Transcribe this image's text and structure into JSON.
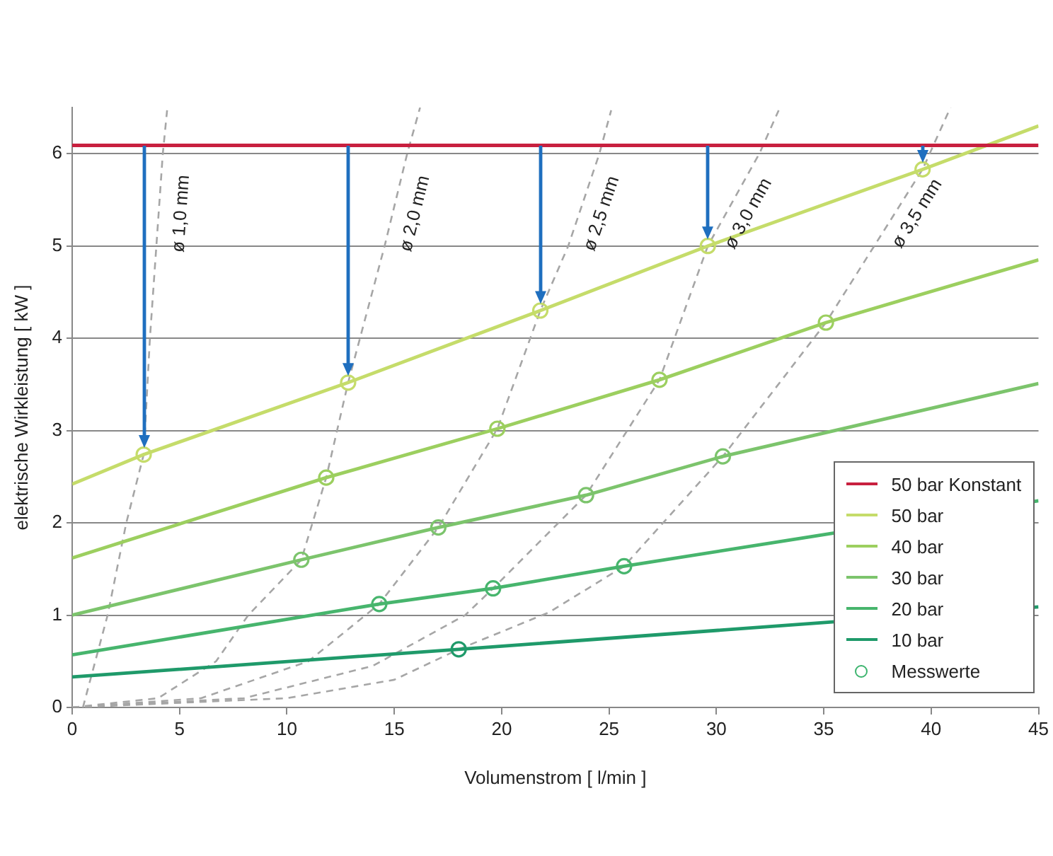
{
  "chart_data": {
    "type": "line",
    "xlabel": "Volumenstrom [ l/min ]",
    "ylabel": "elektrische Wirkleistung [ kW ]",
    "xlim": [
      0,
      45
    ],
    "xticks": [
      0,
      5,
      10,
      15,
      20,
      25,
      30,
      35,
      40,
      45
    ],
    "ylim": [
      0,
      6.5
    ],
    "yticks": [
      0,
      1,
      2,
      3,
      4,
      5,
      6
    ],
    "grid": "y",
    "legend": "bottom right",
    "series": [
      {
        "name": "50 bar Konstant",
        "color": "#c8203f",
        "x": [
          0,
          45
        ],
        "values": [
          6.09,
          6.09
        ]
      },
      {
        "name": "50 bar",
        "color": "#c5dc6a",
        "x": [
          0,
          3.33,
          12.85,
          21.8,
          29.6,
          39.6,
          45
        ],
        "values": [
          2.42,
          2.74,
          3.52,
          4.3,
          5.0,
          5.83,
          6.3
        ]
      },
      {
        "name": "40 bar",
        "color": "#9ccf5f",
        "x": [
          0,
          11.83,
          19.8,
          27.35,
          35.1,
          45
        ],
        "values": [
          1.62,
          2.49,
          3.02,
          3.55,
          4.17,
          4.85
        ]
      },
      {
        "name": "30 bar",
        "color": "#7cc46c",
        "x": [
          0,
          10.67,
          17.05,
          23.93,
          30.3,
          45
        ],
        "values": [
          1.0,
          1.6,
          1.95,
          2.3,
          2.72,
          3.51
        ]
      },
      {
        "name": "20 bar",
        "color": "#47b56d",
        "x": [
          0,
          14.3,
          19.6,
          25.7,
          45
        ],
        "values": [
          0.57,
          1.12,
          1.29,
          1.53,
          2.24
        ]
      },
      {
        "name": "10 bar",
        "color": "#1f9a6a",
        "x": [
          0,
          18.0,
          45
        ],
        "values": [
          0.33,
          0.63,
          1.09
        ]
      },
      {
        "name": "ø 1,0 mm",
        "color": "#a6a6a6",
        "line_style": "dashed",
        "x": [
          0.5,
          1.65,
          2.52,
          3.33,
          3.62,
          3.92,
          4.22,
          4.42
        ],
        "values": [
          0,
          1,
          2,
          2.74,
          4,
          5,
          6,
          6.47
        ]
      },
      {
        "name": "ø 2,0 mm",
        "color": "#a6a6a6",
        "line_style": "dashed",
        "x": [
          0,
          4,
          6.7,
          8.2,
          10.67,
          11.83,
          12.85,
          14.55,
          15.6,
          16.2
        ],
        "values": [
          0,
          0.1,
          0.5,
          1,
          1.6,
          2.49,
          3.52,
          5,
          6,
          6.5
        ]
      },
      {
        "name": "ø 2,5 mm",
        "color": "#a6a6a6",
        "line_style": "dashed",
        "x": [
          0,
          6,
          11,
          14.3,
          17.05,
          19.8,
          21.8,
          23.1,
          24.55,
          25.1
        ],
        "values": [
          0,
          0.1,
          0.5,
          1.12,
          1.95,
          3.02,
          4.3,
          5,
          6,
          6.47
        ]
      },
      {
        "name": "ø 3,0 mm",
        "color": "#a6a6a6",
        "line_style": "dashed",
        "x": [
          0,
          8,
          14,
          18.3,
          19.6,
          23.93,
          27.35,
          29.6,
          32.0,
          32.9
        ],
        "values": [
          0,
          0.1,
          0.45,
          1.0,
          1.29,
          2.3,
          3.55,
          5.0,
          6,
          6.47
        ]
      },
      {
        "name": "ø 3,5 mm",
        "color": "#a6a6a6",
        "line_style": "dashed",
        "x": [
          0,
          10,
          15,
          18.0,
          22.2,
          25.7,
          30.3,
          35.1,
          39.6,
          40.9
        ],
        "values": [
          0,
          0.1,
          0.3,
          0.63,
          1.03,
          1.53,
          2.72,
          4.17,
          5.83,
          6.5
        ]
      },
      {
        "name": "Messwerte",
        "type": "scatter",
        "marker": "circle",
        "color": "#3cb46e",
        "x": [
          3.33,
          12.85,
          21.8,
          29.6,
          39.6,
          11.83,
          19.8,
          27.35,
          35.1,
          10.67,
          17.05,
          23.93,
          30.3,
          14.3,
          19.6,
          25.7,
          18.0
        ],
        "values": [
          2.74,
          3.52,
          4.3,
          5.0,
          5.83,
          2.49,
          3.02,
          3.55,
          4.17,
          1.6,
          1.95,
          2.3,
          2.72,
          1.12,
          1.29,
          1.53,
          0.63
        ],
        "colors": [
          "#c5dc6a",
          "#c5dc6a",
          "#c5dc6a",
          "#c5dc6a",
          "#c5dc6a",
          "#9ccf5f",
          "#9ccf5f",
          "#9ccf5f",
          "#9ccf5f",
          "#7cc46c",
          "#7cc46c",
          "#7cc46c",
          "#7cc46c",
          "#47b56d",
          "#47b56d",
          "#47b56d",
          "#1f9a6a"
        ]
      }
    ]
  }
}
